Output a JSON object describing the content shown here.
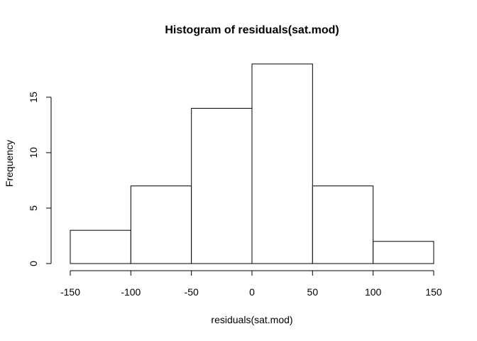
{
  "chart_data": {
    "type": "bar",
    "subtype": "histogram",
    "title": "Histogram of residuals(sat.mod)",
    "xlabel": "residuals(sat.mod)",
    "ylabel": "Frequency",
    "bin_edges": [
      -150,
      -100,
      -50,
      0,
      50,
      100,
      150
    ],
    "values": [
      3,
      7,
      14,
      18,
      7,
      2
    ],
    "xlim": [
      -150,
      150
    ],
    "ylim": [
      0,
      18
    ],
    "x_ticks": [
      -150,
      -100,
      -50,
      0,
      50,
      100,
      150
    ],
    "y_ticks": [
      0,
      5,
      10,
      15
    ],
    "grid": false,
    "colors": {
      "bar_fill": "#ffffff",
      "bar_stroke": "#000000"
    }
  }
}
